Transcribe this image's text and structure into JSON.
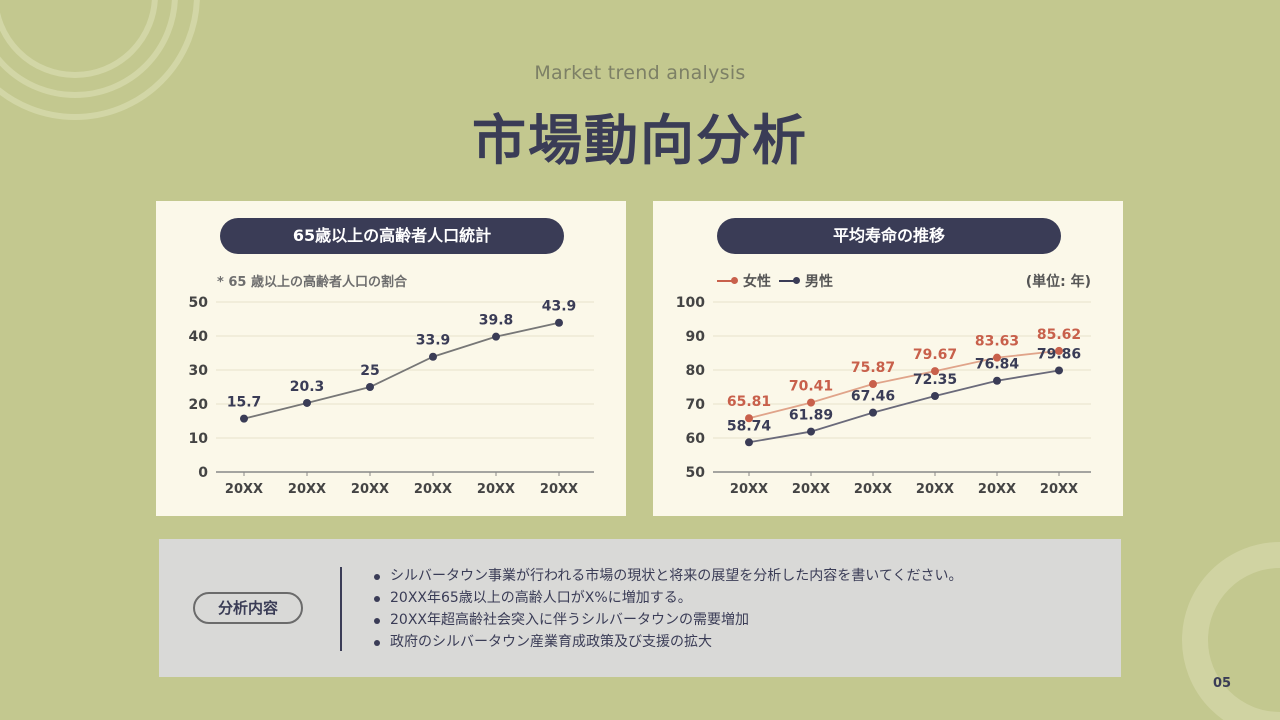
{
  "header": {
    "subtitle": "Market trend analysis",
    "title": "市場動向分析"
  },
  "chart_data": [
    {
      "type": "line",
      "title": "65歳以上の高齢者人口統計",
      "note": "* 65 歳以上の高齢者人口の割合",
      "categories": [
        "20XX",
        "20XX",
        "20XX",
        "20XX",
        "20XX",
        "20XX"
      ],
      "series": [
        {
          "name": "割合",
          "color": "#3a3c56",
          "line_color": "#777777",
          "values": [
            15.7,
            20.3,
            25,
            33.9,
            39.8,
            43.9
          ]
        }
      ],
      "ylim": [
        0,
        50
      ],
      "yticks": [
        0,
        10,
        20,
        30,
        40,
        50
      ]
    },
    {
      "type": "line",
      "title": "平均寿命の推移",
      "unit": "(単位: 年)",
      "categories": [
        "20XX",
        "20XX",
        "20XX",
        "20XX",
        "20XX",
        "20XX"
      ],
      "series": [
        {
          "name": "女性",
          "color": "#c8604b",
          "line_color": "#e0a48a",
          "values": [
            65.81,
            70.41,
            75.87,
            79.67,
            83.63,
            85.62
          ]
        },
        {
          "name": "男性",
          "color": "#3a3c56",
          "line_color": "#6a6a7a",
          "values": [
            58.74,
            61.89,
            67.46,
            72.35,
            76.84,
            79.86
          ]
        }
      ],
      "ylim": [
        50,
        100
      ],
      "yticks": [
        50,
        60,
        70,
        80,
        90,
        100
      ]
    }
  ],
  "analysis": {
    "tag": "分析内容",
    "bullets": [
      "シルバータウン事業が行われる市場の現状と将来の展望を分析した内容を書いてください。",
      "20XX年65歳以上の高齢人口がX%に増加する。",
      "20XX年超高齢社会突入に伴うシルバータウンの需要増加",
      "政府のシルバータウン産業育成政策及び支援の拡大"
    ]
  },
  "page_number": "05"
}
